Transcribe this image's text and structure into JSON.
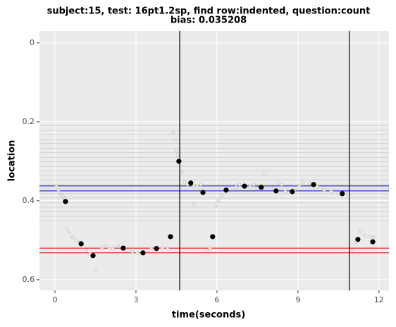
{
  "chart_data": {
    "type": "scatter",
    "title": [
      "subject:15, test: 16pt1.2sp, find row:indented, question:count",
      "bias: 0.035208"
    ],
    "x_label": "time(seconds)",
    "y_label": "location",
    "xlim": [
      -0.574,
      12.37
    ],
    "ylim": [
      -0.03,
      0.627
    ],
    "y_reversed": true,
    "xticks": [
      0,
      3,
      6,
      9,
      12
    ],
    "yticks": [
      0,
      0.2,
      0.4,
      0.6
    ],
    "grid": true,
    "series": [
      {
        "name": "gaze",
        "color": "#bbbbbb",
        "size": 2,
        "x": [
          0.05,
          0.13,
          0.21,
          0.29,
          0.37,
          0.44,
          0.52,
          0.65,
          0.78,
          0.91,
          1.04,
          1.17,
          1.3,
          1.49,
          1.75,
          1.88,
          2.01,
          2.14,
          2.35,
          2.66,
          2.87,
          3.05,
          3.44,
          3.57,
          3.97,
          4.17,
          4.38,
          4.44,
          4.49,
          4.54,
          4.7,
          4.8,
          4.91,
          5.14,
          5.14,
          5.27,
          5.4,
          5.64,
          5.74,
          5.95,
          6.05,
          6.18,
          6.44,
          6.7,
          6.84,
          7.23,
          7.36,
          7.49,
          7.75,
          7.88,
          8.09,
          8.27,
          8.4,
          8.53,
          8.87,
          9.05,
          9.18,
          9.44,
          9.71,
          9.97,
          10.23,
          10.49,
          10.75,
          11.01,
          11.14,
          11.32,
          11.48,
          11.66,
          11.79
        ],
        "values": [
          0.364,
          0.373,
          0.384,
          0.388,
          0.395,
          0.471,
          0.48,
          0.493,
          0.5,
          0.505,
          0.516,
          0.525,
          0.534,
          0.575,
          0.52,
          0.516,
          0.52,
          0.52,
          0.516,
          0.525,
          0.529,
          0.532,
          0.527,
          0.521,
          0.52,
          0.52,
          0.227,
          0.248,
          0.275,
          0.284,
          0.329,
          0.352,
          0.359,
          0.364,
          0.409,
          0.364,
          0.359,
          0.525,
          0.52,
          0.413,
          0.4,
          0.388,
          0.37,
          0.366,
          0.359,
          0.364,
          0.359,
          0.368,
          0.334,
          0.37,
          0.37,
          0.355,
          0.359,
          0.377,
          0.373,
          0.361,
          0.352,
          0.355,
          0.364,
          0.373,
          0.377,
          0.38,
          0.382,
          0.525,
          0.505,
          0.477,
          0.489,
          0.491,
          0.493
        ]
      },
      {
        "name": "fixations",
        "color": "#000000",
        "size": 3.2,
        "x": [
          0.39,
          0.97,
          1.41,
          2.53,
          3.26,
          3.76,
          4.28,
          4.59,
          5.03,
          5.48,
          5.84,
          6.34,
          7.02,
          7.64,
          8.19,
          8.79,
          9.58,
          10.64,
          11.22,
          11.77
        ],
        "values": [
          0.402,
          0.509,
          0.539,
          0.52,
          0.532,
          0.521,
          0.491,
          0.3,
          0.355,
          0.379,
          0.491,
          0.373,
          0.363,
          0.366,
          0.375,
          0.377,
          0.359,
          0.382,
          0.498,
          0.504
        ]
      }
    ],
    "hlines": [
      {
        "color": "#d3d3d3",
        "values": [
          0.209,
          0.221,
          0.232,
          0.244,
          0.255,
          0.267,
          0.278,
          0.29,
          0.301,
          0.313,
          0.324,
          0.336,
          0.347,
          0.359,
          0.37,
          0.382,
          0.393,
          0.405,
          0.416,
          0.428,
          0.439,
          0.451
        ]
      },
      {
        "color": "#0000cc",
        "values": [
          0.3625,
          0.375
        ]
      },
      {
        "color": "#e00000",
        "values": [
          0.52,
          0.532
        ]
      }
    ],
    "vlines": {
      "color": "#000000",
      "values": [
        4.62,
        10.9
      ]
    }
  }
}
